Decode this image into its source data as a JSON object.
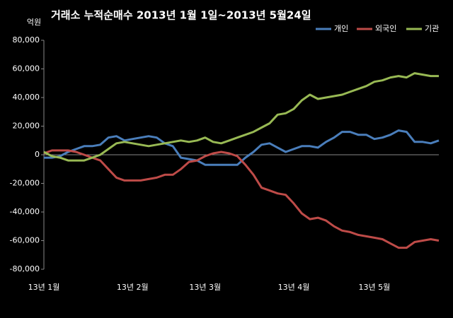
{
  "chart_data": {
    "type": "line",
    "title": "거래소  누적순매수 2013년 1월 1일~2013년 5월24일",
    "y_label": "억원",
    "categories": [
      "13년 1월",
      null,
      null,
      null,
      null,
      null,
      null,
      null,
      null,
      null,
      null,
      "13년 2월",
      null,
      null,
      null,
      null,
      null,
      null,
      null,
      null,
      "13년 3월",
      null,
      null,
      null,
      null,
      null,
      null,
      null,
      null,
      null,
      null,
      "13년 4월",
      null,
      null,
      null,
      null,
      null,
      null,
      null,
      null,
      null,
      "13년 5월",
      null,
      null,
      null,
      null,
      null,
      null,
      null,
      null
    ],
    "series": [
      {
        "name": "개인",
        "color": "#4a7ebb",
        "values": [
          -2000,
          -2000,
          -1000,
          2000,
          4000,
          6000,
          6000,
          7000,
          12000,
          13000,
          10000,
          11000,
          12000,
          13000,
          12000,
          8000,
          6000,
          -2000,
          -3000,
          -4000,
          -7000,
          -7000,
          -7000,
          -7000,
          -7000,
          -2000,
          2000,
          7000,
          8000,
          5000,
          2000,
          4000,
          6000,
          6000,
          5000,
          9000,
          12000,
          16000,
          16000,
          14000,
          14000,
          11000,
          12000,
          14000,
          17000,
          16000,
          9000,
          9000,
          8000,
          10000
        ]
      },
      {
        "name": "외국인",
        "color": "#be4b48",
        "values": [
          1000,
          3000,
          3000,
          3000,
          2000,
          0,
          -2000,
          -4000,
          -10000,
          -16000,
          -18000,
          -18000,
          -18000,
          -17000,
          -16000,
          -14000,
          -14000,
          -10000,
          -5000,
          -4000,
          -1000,
          1000,
          2000,
          1000,
          -1000,
          -7000,
          -14000,
          -23000,
          -25000,
          -27000,
          -28000,
          -34000,
          -41000,
          -45000,
          -44000,
          -46000,
          -50000,
          -53000,
          -54000,
          -56000,
          -57000,
          -58000,
          -59000,
          -62000,
          -65000,
          -65000,
          -61000,
          -60000,
          -59000,
          -60000
        ]
      },
      {
        "name": "기관",
        "color": "#98b954",
        "values": [
          2000,
          -1000,
          -2000,
          -4000,
          -4000,
          -4000,
          -2000,
          0,
          4000,
          8000,
          9000,
          8000,
          7000,
          6000,
          7000,
          8000,
          9000,
          10000,
          9000,
          10000,
          12000,
          9000,
          8000,
          10000,
          12000,
          14000,
          16000,
          19000,
          22000,
          28000,
          29000,
          32000,
          38000,
          42000,
          39000,
          40000,
          41000,
          42000,
          44000,
          46000,
          48000,
          51000,
          52000,
          54000,
          55000,
          54000,
          57000,
          56000,
          55000,
          55000
        ]
      }
    ],
    "ylim": [
      -80000,
      80000
    ],
    "yticks": [
      {
        "value": -80000,
        "label": "-80,000"
      },
      {
        "value": -60000,
        "label": "-60,000"
      },
      {
        "value": -40000,
        "label": "-40,000"
      },
      {
        "value": -20000,
        "label": "-20,000"
      },
      0,
      {
        "value": 20000,
        "label": "20,000"
      },
      {
        "value": 40000,
        "label": "40,000"
      },
      {
        "value": 60000,
        "label": "60,000"
      },
      {
        "value": 80000,
        "label": "80,000"
      }
    ],
    "legend": "top-right"
  }
}
